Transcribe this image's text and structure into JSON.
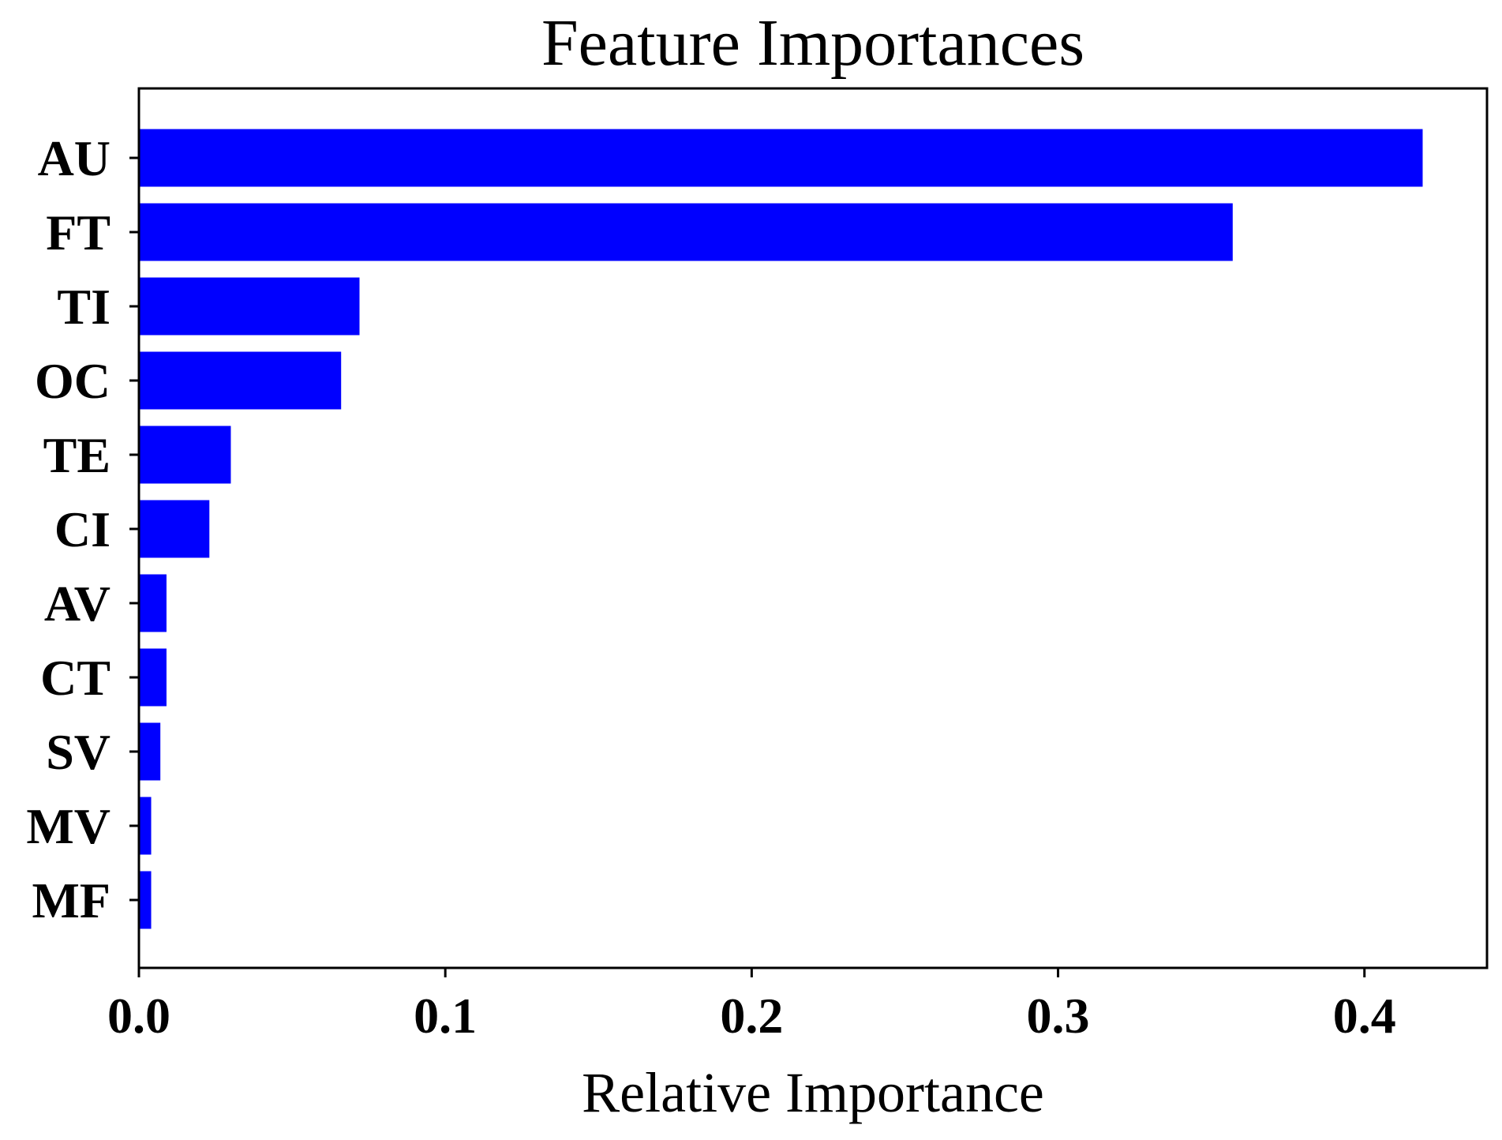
{
  "chart_data": {
    "type": "bar",
    "orientation": "horizontal",
    "title": "Feature Importances",
    "xlabel": "Relative Importance",
    "ylabel": "",
    "categories": [
      "AU",
      "FT",
      "TI",
      "OC",
      "TE",
      "CI",
      "AV",
      "CT",
      "SV",
      "MV",
      "MF"
    ],
    "values": [
      0.419,
      0.357,
      0.072,
      0.066,
      0.03,
      0.023,
      0.009,
      0.009,
      0.007,
      0.004,
      0.004
    ],
    "xlim": [
      0,
      0.44
    ],
    "xticks": [
      0.0,
      0.1,
      0.2,
      0.3,
      0.4
    ],
    "xtick_labels": [
      "0.0",
      "0.1",
      "0.2",
      "0.3",
      "0.4"
    ],
    "bar_color": "#0000ff",
    "grid": false,
    "legend": "none"
  }
}
